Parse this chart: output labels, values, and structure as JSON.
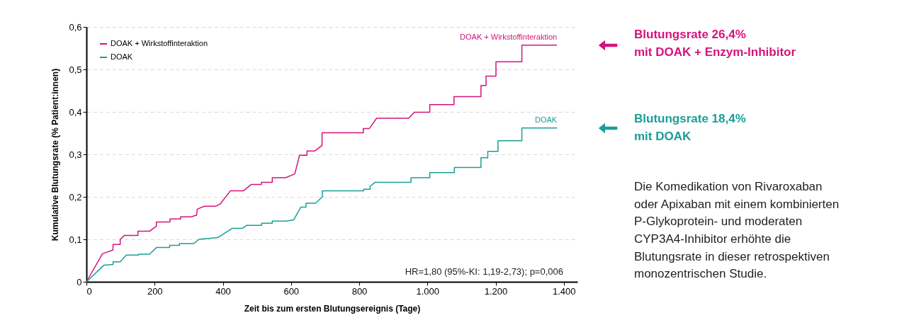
{
  "chart_data": {
    "type": "line",
    "xlabel": "Zeit bis zum ersten Blutungsereignis (Tage)",
    "ylabel": "Kumulative Blutungsrate (% Patient:innen)",
    "xlim": [
      0,
      1440
    ],
    "xticks": [
      0,
      200,
      400,
      600,
      800,
      {
        "value": 1000,
        "label": "1.000"
      },
      {
        "value": 1200,
        "label": "1.200"
      },
      {
        "value": 1400,
        "label": "1.400"
      }
    ],
    "ylim": [
      0,
      0.6
    ],
    "yticks": [
      0,
      {
        "value": 0.1,
        "label": "0,1"
      },
      {
        "value": 0.2,
        "label": "0,2"
      },
      {
        "value": 0.3,
        "label": "0,3"
      },
      {
        "value": 0.4,
        "label": "0,4"
      },
      {
        "value": 0.5,
        "label": "0,5"
      },
      {
        "value": 0.6,
        "label": "0,6"
      }
    ],
    "grid": "y",
    "legend": "top left",
    "line_style": "solid",
    "marker": "none",
    "series": [
      {
        "name": "DOAK + Wirkstoffinteraktion",
        "color": "#d6137b",
        "x": [
          0,
          47,
          78,
          78,
          99,
          99,
          111,
          151,
          151,
          185,
          205,
          205,
          245,
          245,
          276,
          276,
          307,
          323,
          325,
          346,
          380,
          392,
          422,
          460,
          483,
          513,
          513,
          545,
          545,
          584,
          611,
          625,
          647,
          647,
          670,
          691,
          691,
          812,
          812,
          830,
          851,
          945,
          962,
          1007,
          1007,
          1078,
          1078,
          1157,
          1157,
          1172,
          1172,
          1201,
          1201,
          1277,
          1277,
          1380
        ],
        "values": [
          0,
          0.066,
          0.075,
          0.088,
          0.088,
          0.1,
          0.109,
          0.109,
          0.119,
          0.119,
          0.131,
          0.141,
          0.141,
          0.148,
          0.148,
          0.153,
          0.153,
          0.157,
          0.171,
          0.178,
          0.178,
          0.183,
          0.214,
          0.214,
          0.229,
          0.229,
          0.234,
          0.234,
          0.245,
          0.245,
          0.254,
          0.298,
          0.298,
          0.308,
          0.308,
          0.321,
          0.351,
          0.351,
          0.361,
          0.361,
          0.385,
          0.385,
          0.399,
          0.399,
          0.417,
          0.417,
          0.436,
          0.436,
          0.462,
          0.462,
          0.484,
          0.484,
          0.518,
          0.518,
          0.557,
          0.557
        ]
      },
      {
        "name": "DOAK",
        "color": "#1a9e96",
        "x": [
          0,
          51,
          78,
          78,
          99,
          117,
          153,
          153,
          185,
          206,
          244,
          244,
          273,
          273,
          315,
          330,
          385,
          428,
          458,
          470,
          514,
          514,
          545,
          545,
          585,
          608,
          629,
          644,
          644,
          672,
          692,
          692,
          813,
          813,
          832,
          832,
          846,
          952,
          952,
          1007,
          1007,
          1079,
          1079,
          1157,
          1157,
          1177,
          1177,
          1207,
          1207,
          1277,
          1277,
          1380
        ],
        "values": [
          0,
          0.039,
          0.041,
          0.047,
          0.047,
          0.063,
          0.063,
          0.065,
          0.065,
          0.081,
          0.081,
          0.086,
          0.086,
          0.09,
          0.09,
          0.1,
          0.104,
          0.126,
          0.126,
          0.133,
          0.133,
          0.138,
          0.138,
          0.143,
          0.143,
          0.146,
          0.176,
          0.176,
          0.185,
          0.185,
          0.2,
          0.214,
          0.214,
          0.218,
          0.218,
          0.225,
          0.234,
          0.234,
          0.245,
          0.245,
          0.257,
          0.257,
          0.269,
          0.269,
          0.292,
          0.292,
          0.307,
          0.307,
          0.332,
          0.332,
          0.362,
          0.362
        ]
      }
    ],
    "annotations": [
      "HR=1,80 (95%-KI: 1,19-2,73); p=0,006",
      "Blutungsrate 26,4%\nmit DOAK + Enzym-Inhibitor",
      "Blutungsrate 18,4%\nmit DOAK",
      "Die Komedikation von Rivaroxaban\noder Apixaban mit einem kombinierten\nP-Glykoprotein- und moderaten\nCYP3A4-Inhibitor erhöhte die\nBlutungsrate in dieser retrospektiven\nmonozentrischen Studie."
    ]
  }
}
